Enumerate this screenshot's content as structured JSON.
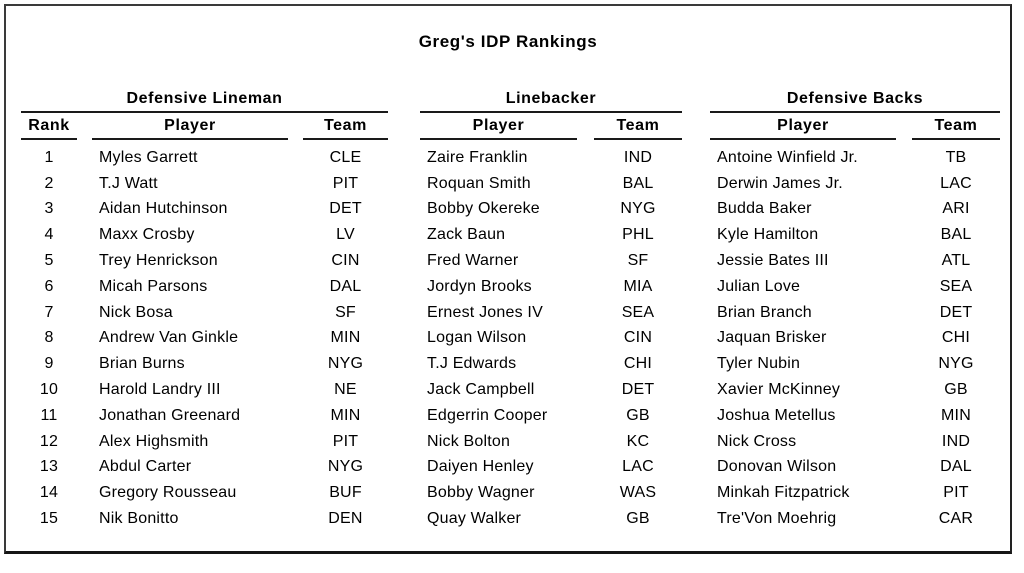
{
  "title": "Greg's IDP Rankings",
  "columns": {
    "rank": "Rank",
    "player": "Player",
    "team": "Team"
  },
  "sections": [
    {
      "name": "Defensive Lineman",
      "rows": [
        {
          "rank": "1",
          "player": "Myles Garrett",
          "team": "CLE"
        },
        {
          "rank": "2",
          "player": "T.J Watt",
          "team": "PIT"
        },
        {
          "rank": "3",
          "player": "Aidan Hutchinson",
          "team": "DET"
        },
        {
          "rank": "4",
          "player": "Maxx Crosby",
          "team": "LV"
        },
        {
          "rank": "5",
          "player": "Trey Henrickson",
          "team": "CIN"
        },
        {
          "rank": "6",
          "player": "Micah Parsons",
          "team": "DAL"
        },
        {
          "rank": "7",
          "player": "Nick Bosa",
          "team": "SF"
        },
        {
          "rank": "8",
          "player": "Andrew Van Ginkle",
          "team": "MIN"
        },
        {
          "rank": "9",
          "player": "Brian Burns",
          "team": "NYG"
        },
        {
          "rank": "10",
          "player": "Harold Landry III",
          "team": "NE"
        },
        {
          "rank": "11",
          "player": "Jonathan Greenard",
          "team": "MIN"
        },
        {
          "rank": "12",
          "player": "Alex Highsmith",
          "team": "PIT"
        },
        {
          "rank": "13",
          "player": "Abdul Carter",
          "team": "NYG"
        },
        {
          "rank": "14",
          "player": "Gregory Rousseau",
          "team": "BUF"
        },
        {
          "rank": "15",
          "player": "Nik Bonitto",
          "team": "DEN"
        }
      ]
    },
    {
      "name": "Linebacker",
      "rows": [
        {
          "player": "Zaire Franklin",
          "team": "IND"
        },
        {
          "player": "Roquan Smith",
          "team": "BAL"
        },
        {
          "player": "Bobby Okereke",
          "team": "NYG"
        },
        {
          "player": "Zack Baun",
          "team": "PHL"
        },
        {
          "player": "Fred Warner",
          "team": "SF"
        },
        {
          "player": "Jordyn Brooks",
          "team": "MIA"
        },
        {
          "player": "Ernest Jones IV",
          "team": "SEA"
        },
        {
          "player": "Logan Wilson",
          "team": "CIN"
        },
        {
          "player": "T.J Edwards",
          "team": "CHI"
        },
        {
          "player": "Jack Campbell",
          "team": "DET"
        },
        {
          "player": "Edgerrin Cooper",
          "team": "GB"
        },
        {
          "player": "Nick Bolton",
          "team": "KC"
        },
        {
          "player": "Daiyen Henley",
          "team": "LAC"
        },
        {
          "player": "Bobby Wagner",
          "team": "WAS"
        },
        {
          "player": "Quay Walker",
          "team": "GB"
        }
      ]
    },
    {
      "name": "Defensive Backs",
      "rows": [
        {
          "player": "Antoine Winfield Jr.",
          "team": "TB"
        },
        {
          "player": "Derwin James Jr.",
          "team": "LAC"
        },
        {
          "player": "Budda Baker",
          "team": "ARI"
        },
        {
          "player": "Kyle Hamilton",
          "team": "BAL"
        },
        {
          "player": "Jessie Bates III",
          "team": "ATL"
        },
        {
          "player": "Julian Love",
          "team": "SEA"
        },
        {
          "player": "Brian Branch",
          "team": "DET"
        },
        {
          "player": "Jaquan Brisker",
          "team": "CHI"
        },
        {
          "player": "Tyler Nubin",
          "team": "NYG"
        },
        {
          "player": "Xavier McKinney",
          "team": "GB"
        },
        {
          "player": "Joshua Metellus",
          "team": "MIN"
        },
        {
          "player": "Nick Cross",
          "team": "IND"
        },
        {
          "player": "Donovan Wilson",
          "team": "DAL"
        },
        {
          "player": "Minkah Fitzpatrick",
          "team": "PIT"
        },
        {
          "player": "Tre'Von Moehrig",
          "team": "CAR"
        }
      ]
    }
  ]
}
